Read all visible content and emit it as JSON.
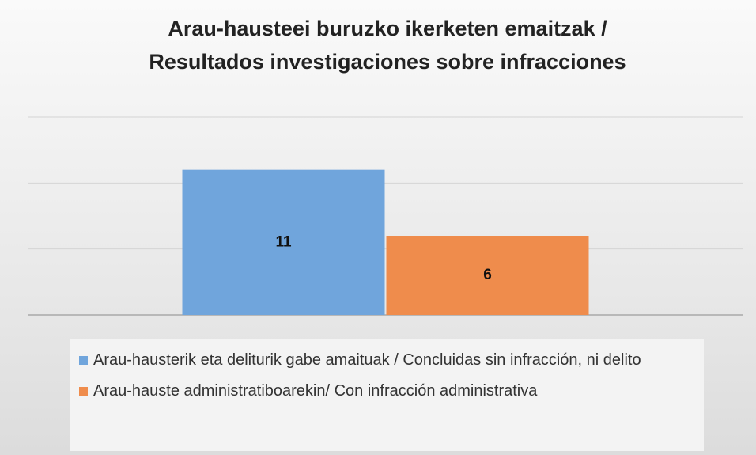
{
  "chart_data": {
    "type": "bar",
    "title": [
      "Arau-hausteei buruzko ikerketen emaitzak /",
      "Resultados investigaciones sobre infracciones"
    ],
    "categories": [
      null
    ],
    "series": [
      {
        "name": "Arau-hausterik eta deliturik gabe amaituak / Concluidas sin infracción, ni delito",
        "color": "#70a5dc",
        "values": [
          11
        ]
      },
      {
        "name": "Arau-hauste administratiboarekin/ Con infracción administrativa",
        "color": "#ef8c4c",
        "values": [
          6
        ]
      }
    ],
    "ylim": [
      0,
      15
    ],
    "yticks": [
      0,
      5,
      10,
      15
    ],
    "grid": true,
    "legend": "bottom"
  }
}
